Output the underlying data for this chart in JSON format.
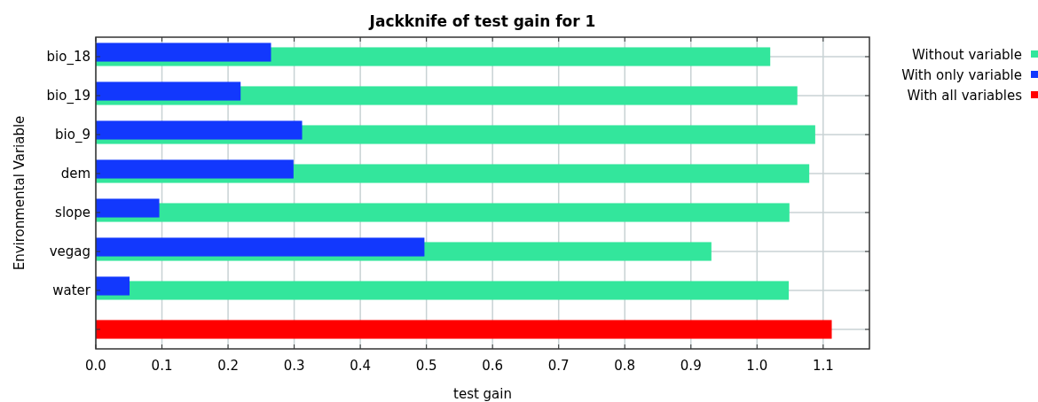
{
  "chart_data": {
    "type": "bar",
    "orientation": "horizontal",
    "title": "Jackknife of test gain for 1",
    "xlabel": "test gain",
    "ylabel": "Environmental Variable",
    "categories": [
      "bio_18",
      "bio_19",
      "bio_9",
      "dem",
      "slope",
      "vegag",
      "water",
      null
    ],
    "series": [
      {
        "name": "Without variable",
        "color": "#33e69c",
        "values": [
          1.02,
          1.061,
          1.088,
          1.079,
          1.049,
          0.931,
          1.048,
          null
        ]
      },
      {
        "name": "With only variable",
        "color": "#1238fd",
        "values": [
          0.265,
          0.219,
          0.312,
          0.299,
          0.096,
          0.497,
          0.051,
          null
        ]
      },
      {
        "name": "With all variables",
        "color": "#ff0000",
        "values": [
          null,
          null,
          null,
          null,
          null,
          null,
          null,
          1.113
        ]
      }
    ],
    "xlim": [
      0,
      1.17
    ],
    "xticks": [
      {
        "value": 0,
        "label": "0.0"
      },
      0.1,
      0.2,
      0.3,
      0.4,
      0.5,
      0.6,
      0.7,
      0.8,
      0.9,
      {
        "value": 1,
        "label": "1.0"
      },
      1.1
    ],
    "grid": true,
    "legend": "top right"
  }
}
